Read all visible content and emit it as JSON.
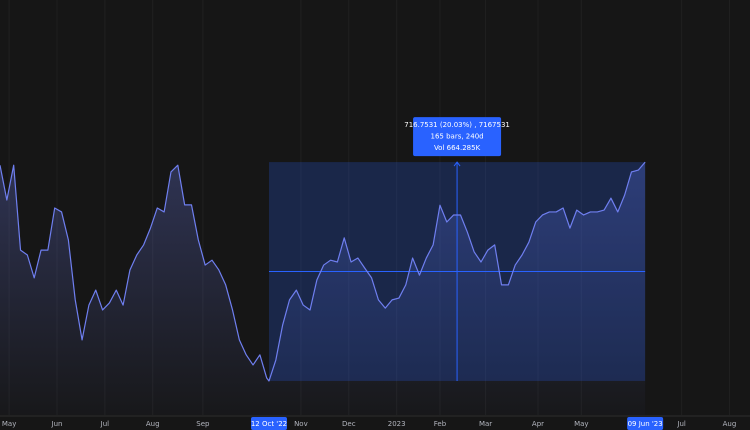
{
  "chart_data": {
    "type": "line",
    "grid": true,
    "xlim": [
      0,
      329
    ],
    "ylim": [
      3467,
      4826
    ],
    "xticks": [
      {
        "value": 4,
        "label": "May"
      },
      {
        "value": 25,
        "label": "Jun"
      },
      {
        "value": 46,
        "label": "Jul"
      },
      {
        "value": 67,
        "label": "Aug"
      },
      {
        "value": 89,
        "label": "Sep"
      },
      {
        "value": 132,
        "label": "Nov"
      },
      {
        "value": 153,
        "label": "Dec"
      },
      {
        "value": 174,
        "label": "2023"
      },
      {
        "value": 193,
        "label": "Feb"
      },
      {
        "value": 213,
        "label": "Mar"
      },
      {
        "value": 236,
        "label": "Apr"
      },
      {
        "value": 255,
        "label": "May"
      },
      {
        "value": 299,
        "label": "Jul"
      },
      {
        "value": 320,
        "label": "Aug"
      }
    ],
    "series": [
      {
        "color": "#6f7ff0",
        "x": [
          0,
          3,
          6,
          9,
          12,
          15,
          18,
          21,
          24,
          27,
          30,
          33,
          36,
          39,
          42,
          45,
          48,
          51,
          54,
          57,
          60,
          63,
          66,
          69,
          72,
          75,
          78,
          81,
          84,
          87,
          90,
          93,
          96,
          99,
          102,
          105,
          108,
          111,
          114,
          117,
          118,
          121,
          124,
          127,
          130,
          133,
          136,
          139,
          142,
          145,
          148,
          151,
          154,
          157,
          160,
          163,
          166,
          169,
          172,
          175,
          178,
          181,
          184,
          187,
          190,
          193,
          196,
          199,
          202,
          205,
          208,
          211,
          214,
          217,
          220,
          223,
          226,
          229,
          232,
          235,
          238,
          241,
          244,
          247,
          250,
          253,
          256,
          259,
          262,
          265,
          268,
          271,
          274,
          277,
          280,
          283
        ],
        "values": [
          4285,
          4171,
          4285,
          4007,
          3991,
          3916,
          4007,
          4007,
          4145,
          4132,
          4040,
          3844,
          3713,
          3827,
          3876,
          3811,
          3834,
          3876,
          3827,
          3942,
          3991,
          4024,
          4079,
          4145,
          4132,
          4263,
          4285,
          4155,
          4155,
          4040,
          3958,
          3974,
          3942,
          3893,
          3811,
          3713,
          3664,
          3631,
          3664,
          3588,
          3578.5,
          3647,
          3762,
          3844,
          3876,
          3827,
          3811,
          3909,
          3958,
          3974,
          3968,
          4047,
          3968,
          3981,
          3948,
          3916,
          3844,
          3817,
          3844,
          3850,
          3893,
          3981,
          3925,
          3981,
          4024,
          4154,
          4099,
          4122,
          4122,
          4066,
          4001,
          3968,
          4007,
          4024,
          3893,
          3893,
          3958,
          3991,
          4033,
          4099,
          4122,
          4132,
          4132,
          4145,
          4079,
          4138,
          4122,
          4132,
          4132,
          4138,
          4177,
          4132,
          4187,
          4263,
          4269,
          4295.25
        ]
      }
    ],
    "measure": {
      "color": "#2962ff",
      "start": {
        "value": 118,
        "label": "12 Oct '22"
      },
      "end": {
        "value": 283,
        "label": "09 Jun '23"
      },
      "low": 3578.5,
      "high": 4295.25,
      "text": [
        "716.7531 (20.03%) , 7167531",
        "165 bars, 240d",
        "Vol 664.285K"
      ]
    }
  }
}
